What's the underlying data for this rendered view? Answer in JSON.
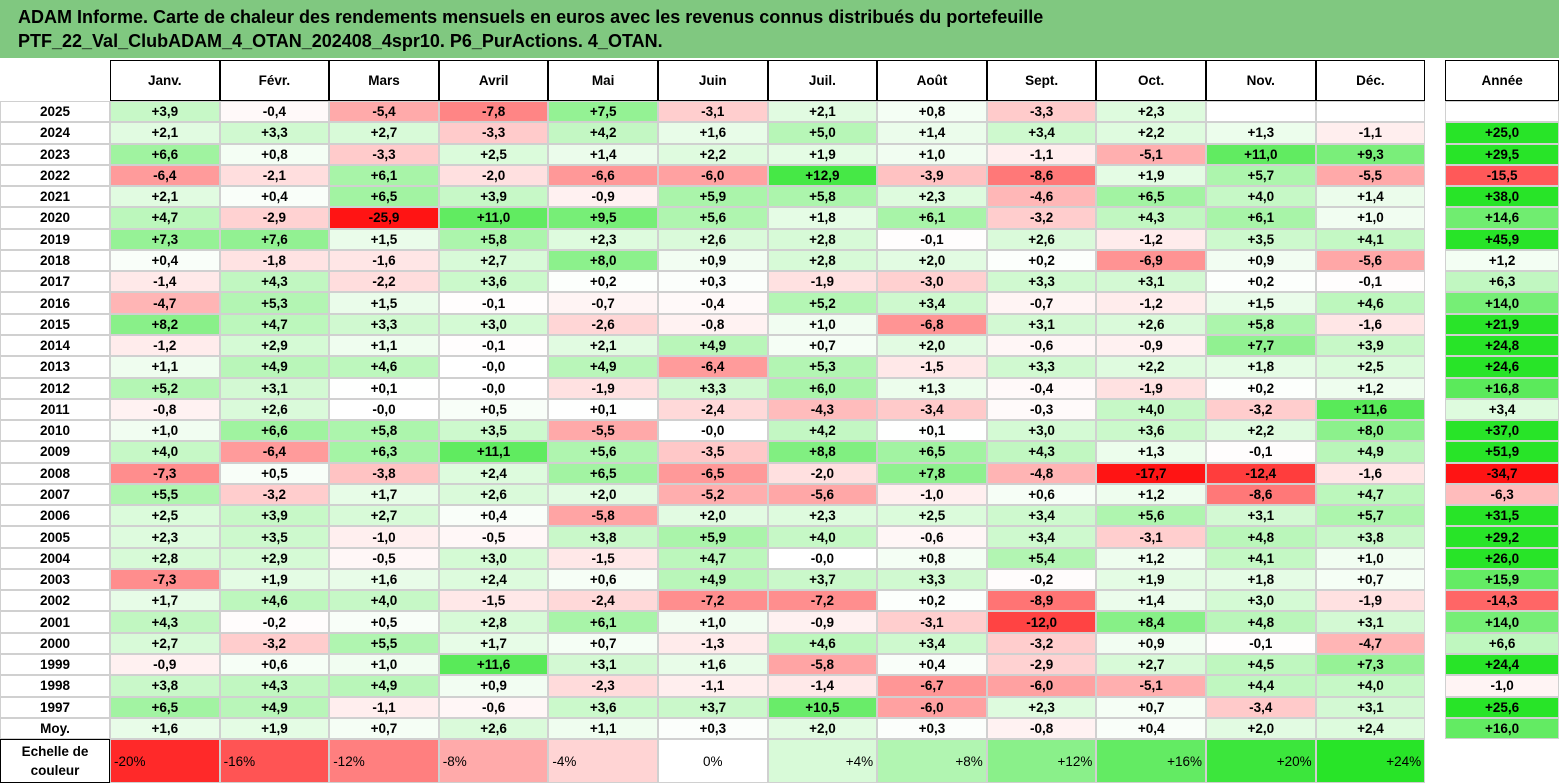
{
  "header": {
    "title": [
      "ADAM Informe. Carte de chaleur des rendements mensuels en euros avec les revenus connus distribués du portefeuille",
      "PTF_22_Val_ClubADAM_4_OTAN_202408_4spr10. P6_PurActions. 4_OTAN."
    ]
  },
  "table": {
    "columns": [
      "Janv.",
      "Févr.",
      "Mars",
      "Avril",
      "Mai",
      "Juin",
      "Juil.",
      "Août",
      "Sept.",
      "Oct.",
      "Nov.",
      "Déc.",
      "Année"
    ],
    "rows": [
      [
        "2025",
        "+3,9",
        "-0,4",
        "-5,4",
        "-7,8",
        "+7,5",
        "-3,1",
        "+2,1",
        "+0,8",
        "-3,3",
        "+2,3",
        null,
        null,
        null
      ],
      [
        "2024",
        "+2,1",
        "+3,3",
        "+2,7",
        "-3,3",
        "+4,2",
        "+1,6",
        "+5,0",
        "+1,4",
        "+3,4",
        "+2,2",
        "+1,3",
        "-1,1",
        "+25,0"
      ],
      [
        "2023",
        "+6,6",
        "+0,8",
        "-3,3",
        "+2,5",
        "+1,4",
        "+2,2",
        "+1,9",
        "+1,0",
        "-1,1",
        "-5,1",
        "+11,0",
        "+9,3",
        "+29,5"
      ],
      [
        "2022",
        "-6,4",
        "-2,1",
        "+6,1",
        "-2,0",
        "-6,6",
        "-6,0",
        "+12,9",
        "-3,9",
        "-8,6",
        "+1,9",
        "+5,7",
        "-5,5",
        "-15,5"
      ],
      [
        "2021",
        "+2,1",
        "+0,4",
        "+6,5",
        "+3,9",
        "-0,9",
        "+5,9",
        "+5,8",
        "+2,3",
        "-4,6",
        "+6,5",
        "+4,0",
        "+1,4",
        "+38,0"
      ],
      [
        "2020",
        "+4,7",
        "-2,9",
        "-25,9",
        "+11,0",
        "+9,5",
        "+5,6",
        "+1,8",
        "+6,1",
        "-3,2",
        "+4,3",
        "+6,1",
        "+1,0",
        "+14,6"
      ],
      [
        "2019",
        "+7,3",
        "+7,6",
        "+1,5",
        "+5,8",
        "+2,3",
        "+2,6",
        "+2,8",
        "-0,1",
        "+2,6",
        "-1,2",
        "+3,5",
        "+4,1",
        "+45,9"
      ],
      [
        "2018",
        "+0,4",
        "-1,8",
        "-1,6",
        "+2,7",
        "+8,0",
        "+0,9",
        "+2,8",
        "+2,0",
        "+0,2",
        "-6,9",
        "+0,9",
        "-5,6",
        "+1,2"
      ],
      [
        "2017",
        "-1,4",
        "+4,3",
        "-2,2",
        "+3,6",
        "+0,2",
        "+0,3",
        "-1,9",
        "-3,0",
        "+3,3",
        "+3,1",
        "+0,2",
        "-0,1",
        "+6,3"
      ],
      [
        "2016",
        "-4,7",
        "+5,3",
        "+1,5",
        "-0,1",
        "-0,7",
        "-0,4",
        "+5,2",
        "+3,4",
        "-0,7",
        "-1,2",
        "+1,5",
        "+4,6",
        "+14,0"
      ],
      [
        "2015",
        "+8,2",
        "+4,7",
        "+3,3",
        "+3,0",
        "-2,6",
        "-0,8",
        "+1,0",
        "-6,8",
        "+3,1",
        "+2,6",
        "+5,8",
        "-1,6",
        "+21,9"
      ],
      [
        "2014",
        "-1,2",
        "+2,9",
        "+1,1",
        "-0,1",
        "+2,1",
        "+4,9",
        "+0,7",
        "+2,0",
        "-0,6",
        "-0,9",
        "+7,7",
        "+3,9",
        "+24,8"
      ],
      [
        "2013",
        "+1,1",
        "+4,9",
        "+4,6",
        "-0,0",
        "+4,9",
        "-6,4",
        "+5,3",
        "-1,5",
        "+3,3",
        "+2,2",
        "+1,8",
        "+2,5",
        "+24,6"
      ],
      [
        "2012",
        "+5,2",
        "+3,1",
        "+0,1",
        "-0,0",
        "-1,9",
        "+3,3",
        "+6,0",
        "+1,3",
        "-0,4",
        "-1,9",
        "+0,2",
        "+1,2",
        "+16,8"
      ],
      [
        "2011",
        "-0,8",
        "+2,6",
        "-0,0",
        "+0,5",
        "+0,1",
        "-2,4",
        "-4,3",
        "-3,4",
        "-0,3",
        "+4,0",
        "-3,2",
        "+11,6",
        "+3,4"
      ],
      [
        "2010",
        "+1,0",
        "+6,6",
        "+5,8",
        "+3,5",
        "-5,5",
        "-0,0",
        "+4,2",
        "+0,1",
        "+3,0",
        "+3,6",
        "+2,2",
        "+8,0",
        "+37,0"
      ],
      [
        "2009",
        "+4,0",
        "-6,4",
        "+6,3",
        "+11,1",
        "+5,6",
        "-3,5",
        "+8,8",
        "+6,5",
        "+4,3",
        "+1,3",
        "-0,1",
        "+4,9",
        "+51,9"
      ],
      [
        "2008",
        "-7,3",
        "+0,5",
        "-3,8",
        "+2,4",
        "+6,5",
        "-6,5",
        "-2,0",
        "+7,8",
        "-4,8",
        "-17,7",
        "-12,4",
        "-1,6",
        "-34,7"
      ],
      [
        "2007",
        "+5,5",
        "-3,2",
        "+1,7",
        "+2,6",
        "+2,0",
        "-5,2",
        "-5,6",
        "-1,0",
        "+0,6",
        "+1,2",
        "-8,6",
        "+4,7",
        "-6,3"
      ],
      [
        "2006",
        "+2,5",
        "+3,9",
        "+2,7",
        "+0,4",
        "-5,8",
        "+2,0",
        "+2,3",
        "+2,5",
        "+3,4",
        "+5,6",
        "+3,1",
        "+5,7",
        "+31,5"
      ],
      [
        "2005",
        "+2,3",
        "+3,5",
        "-1,0",
        "-0,5",
        "+3,8",
        "+5,9",
        "+4,0",
        "-0,6",
        "+3,4",
        "-3,1",
        "+4,8",
        "+3,8",
        "+29,2"
      ],
      [
        "2004",
        "+2,8",
        "+2,9",
        "-0,5",
        "+3,0",
        "-1,5",
        "+4,7",
        "-0,0",
        "+0,8",
        "+5,4",
        "+1,2",
        "+4,1",
        "+1,0",
        "+26,0"
      ],
      [
        "2003",
        "-7,3",
        "+1,9",
        "+1,6",
        "+2,4",
        "+0,6",
        "+4,9",
        "+3,7",
        "+3,3",
        "-0,2",
        "+1,9",
        "+1,8",
        "+0,7",
        "+15,9"
      ],
      [
        "2002",
        "+1,7",
        "+4,6",
        "+4,0",
        "-1,5",
        "-2,4",
        "-7,2",
        "-7,2",
        "+0,2",
        "-8,9",
        "+1,4",
        "+3,0",
        "-1,9",
        "-14,3"
      ],
      [
        "2001",
        "+4,3",
        "-0,2",
        "+0,5",
        "+2,8",
        "+6,1",
        "+1,0",
        "-0,9",
        "-3,1",
        "-12,0",
        "+8,4",
        "+4,8",
        "+3,1",
        "+14,0"
      ],
      [
        "2000",
        "+2,7",
        "-3,2",
        "+5,5",
        "+1,7",
        "+0,7",
        "-1,3",
        "+4,6",
        "+3,4",
        "-3,2",
        "+0,9",
        "-0,1",
        "-4,7",
        "+6,6"
      ],
      [
        "1999",
        "-0,9",
        "+0,6",
        "+1,0",
        "+11,6",
        "+3,1",
        "+1,6",
        "-5,8",
        "+0,4",
        "-2,9",
        "+2,7",
        "+4,5",
        "+7,3",
        "+24,4"
      ],
      [
        "1998",
        "+3,8",
        "+4,3",
        "+4,9",
        "+0,9",
        "-2,3",
        "-1,1",
        "-1,4",
        "-6,7",
        "-6,0",
        "-5,1",
        "+4,4",
        "+4,0",
        "-1,0"
      ],
      [
        "1997",
        "+6,5",
        "+4,9",
        "-1,1",
        "-0,6",
        "+3,6",
        "+3,7",
        "+10,5",
        "-6,0",
        "+2,3",
        "+0,7",
        "-3,4",
        "+3,1",
        "+25,6"
      ],
      [
        "Moy.",
        "+1,6",
        "+1,9",
        "+0,7",
        "+2,6",
        "+1,1",
        "+0,3",
        "+2,0",
        "+0,3",
        "-0,8",
        "+0,4",
        "+2,0",
        "+2,4",
        "+16,0"
      ]
    ]
  },
  "scale": {
    "label": "Echelle de couleur",
    "steps": [
      "-20%",
      "-16%",
      "-12%",
      "-8%",
      "-4%",
      "0%",
      "+4%",
      "+8%",
      "+12%",
      "+16%",
      "+20%",
      "+24%"
    ]
  }
}
